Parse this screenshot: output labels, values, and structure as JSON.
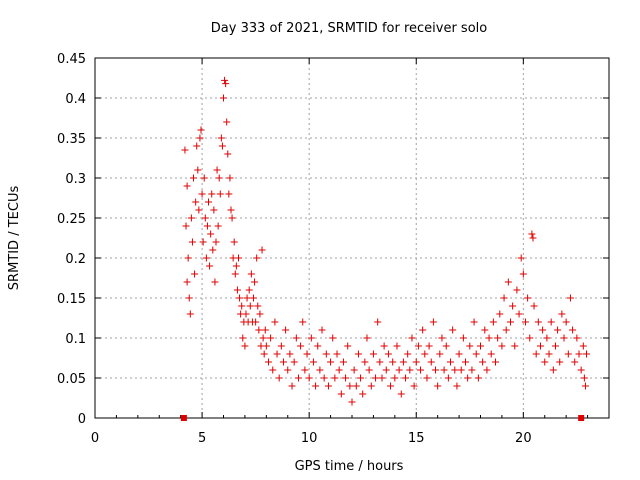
{
  "chart_data": {
    "type": "scatter",
    "title": "Day 333 of 2021, SRMTID for receiver solo",
    "xlabel": "GPS time / hours",
    "ylabel": "SRMTID / TECUs",
    "xlim": [
      0,
      24
    ],
    "ylim": [
      0,
      0.45
    ],
    "grid": true,
    "marker": "+",
    "x_ticks": [
      0,
      5,
      10,
      15,
      20
    ],
    "x_tick_labels": [
      "0",
      "5",
      "10",
      "15",
      "20"
    ],
    "y_ticks": [
      0,
      0.05,
      0.1,
      0.15,
      0.2,
      0.25,
      0.3,
      0.35,
      0.4,
      0.45
    ],
    "y_tick_labels": [
      "0",
      "0.05",
      "0.1",
      "0.15",
      "0.2",
      "0.25",
      "0.3",
      "0.35",
      "0.4",
      "0.45"
    ],
    "color": "#e00000",
    "axis_markers": [
      4.15,
      22.7
    ],
    "series": [
      {
        "name": "SRMTID",
        "points": [
          [
            4.2,
            0.335
          ],
          [
            4.3,
            0.29
          ],
          [
            4.25,
            0.24
          ],
          [
            4.35,
            0.2
          ],
          [
            4.3,
            0.17
          ],
          [
            4.4,
            0.15
          ],
          [
            4.45,
            0.13
          ],
          [
            4.5,
            0.25
          ],
          [
            4.55,
            0.22
          ],
          [
            4.6,
            0.3
          ],
          [
            4.65,
            0.18
          ],
          [
            4.7,
            0.27
          ],
          [
            4.75,
            0.34
          ],
          [
            4.8,
            0.31
          ],
          [
            4.85,
            0.26
          ],
          [
            4.9,
            0.35
          ],
          [
            4.95,
            0.36
          ],
          [
            5.0,
            0.28
          ],
          [
            5.05,
            0.22
          ],
          [
            5.1,
            0.3
          ],
          [
            5.15,
            0.25
          ],
          [
            5.2,
            0.2
          ],
          [
            5.25,
            0.24
          ],
          [
            5.3,
            0.27
          ],
          [
            5.35,
            0.19
          ],
          [
            5.4,
            0.23
          ],
          [
            5.45,
            0.28
          ],
          [
            5.5,
            0.21
          ],
          [
            5.55,
            0.26
          ],
          [
            5.6,
            0.17
          ],
          [
            5.65,
            0.22
          ],
          [
            5.7,
            0.31
          ],
          [
            5.75,
            0.24
          ],
          [
            5.8,
            0.3
          ],
          [
            5.85,
            0.28
          ],
          [
            5.9,
            0.35
          ],
          [
            5.95,
            0.34
          ],
          [
            6.0,
            0.4
          ],
          [
            6.05,
            0.422
          ],
          [
            6.1,
            0.418
          ],
          [
            6.15,
            0.37
          ],
          [
            6.2,
            0.33
          ],
          [
            6.25,
            0.28
          ],
          [
            6.3,
            0.3
          ],
          [
            6.35,
            0.26
          ],
          [
            6.4,
            0.25
          ],
          [
            6.45,
            0.2
          ],
          [
            6.5,
            0.22
          ],
          [
            6.55,
            0.18
          ],
          [
            6.6,
            0.19
          ],
          [
            6.65,
            0.16
          ],
          [
            6.7,
            0.2
          ],
          [
            6.75,
            0.15
          ],
          [
            6.8,
            0.13
          ],
          [
            6.85,
            0.14
          ],
          [
            6.9,
            0.1
          ],
          [
            6.95,
            0.12
          ],
          [
            7.0,
            0.09
          ],
          [
            7.05,
            0.13
          ],
          [
            7.1,
            0.15
          ],
          [
            7.15,
            0.12
          ],
          [
            7.2,
            0.16
          ],
          [
            7.25,
            0.14
          ],
          [
            7.3,
            0.18
          ],
          [
            7.35,
            0.12
          ],
          [
            7.4,
            0.15
          ],
          [
            7.45,
            0.17
          ],
          [
            7.5,
            0.12
          ],
          [
            7.55,
            0.2
          ],
          [
            7.6,
            0.14
          ],
          [
            7.65,
            0.11
          ],
          [
            7.7,
            0.13
          ],
          [
            7.75,
            0.09
          ],
          [
            7.8,
            0.21
          ],
          [
            7.85,
            0.1
          ],
          [
            7.9,
            0.08
          ],
          [
            7.95,
            0.11
          ],
          [
            8.0,
            0.09
          ],
          [
            8.1,
            0.07
          ],
          [
            8.2,
            0.1
          ],
          [
            8.3,
            0.06
          ],
          [
            8.4,
            0.12
          ],
          [
            8.5,
            0.08
          ],
          [
            8.6,
            0.05
          ],
          [
            8.7,
            0.09
          ],
          [
            8.8,
            0.07
          ],
          [
            8.9,
            0.11
          ],
          [
            9.0,
            0.06
          ],
          [
            9.1,
            0.08
          ],
          [
            9.2,
            0.04
          ],
          [
            9.3,
            0.07
          ],
          [
            9.4,
            0.1
          ],
          [
            9.5,
            0.05
          ],
          [
            9.6,
            0.09
          ],
          [
            9.7,
            0.12
          ],
          [
            9.8,
            0.06
          ],
          [
            9.9,
            0.08
          ],
          [
            10.0,
            0.05
          ],
          [
            10.1,
            0.1
          ],
          [
            10.2,
            0.07
          ],
          [
            10.3,
            0.04
          ],
          [
            10.4,
            0.09
          ],
          [
            10.5,
            0.06
          ],
          [
            10.6,
            0.11
          ],
          [
            10.7,
            0.05
          ],
          [
            10.8,
            0.08
          ],
          [
            10.9,
            0.04
          ],
          [
            11.0,
            0.07
          ],
          [
            11.1,
            0.1
          ],
          [
            11.2,
            0.05
          ],
          [
            11.3,
            0.08
          ],
          [
            11.4,
            0.06
          ],
          [
            11.5,
            0.03
          ],
          [
            11.6,
            0.07
          ],
          [
            11.7,
            0.05
          ],
          [
            11.8,
            0.09
          ],
          [
            11.9,
            0.04
          ],
          [
            12.0,
            0.02
          ],
          [
            12.1,
            0.06
          ],
          [
            12.2,
            0.04
          ],
          [
            12.3,
            0.08
          ],
          [
            12.4,
            0.05
          ],
          [
            12.5,
            0.03
          ],
          [
            12.6,
            0.07
          ],
          [
            12.7,
            0.1
          ],
          [
            12.8,
            0.06
          ],
          [
            12.9,
            0.04
          ],
          [
            13.0,
            0.08
          ],
          [
            13.1,
            0.05
          ],
          [
            13.2,
            0.12
          ],
          [
            13.3,
            0.07
          ],
          [
            13.4,
            0.05
          ],
          [
            13.5,
            0.09
          ],
          [
            13.6,
            0.06
          ],
          [
            13.7,
            0.08
          ],
          [
            13.8,
            0.04
          ],
          [
            13.9,
            0.07
          ],
          [
            14.0,
            0.05
          ],
          [
            14.1,
            0.09
          ],
          [
            14.2,
            0.06
          ],
          [
            14.3,
            0.03
          ],
          [
            14.4,
            0.07
          ],
          [
            14.5,
            0.05
          ],
          [
            14.6,
            0.08
          ],
          [
            14.7,
            0.06
          ],
          [
            14.8,
            0.1
          ],
          [
            14.9,
            0.04
          ],
          [
            15.0,
            0.07
          ],
          [
            15.1,
            0.09
          ],
          [
            15.2,
            0.06
          ],
          [
            15.3,
            0.11
          ],
          [
            15.4,
            0.08
          ],
          [
            15.5,
            0.05
          ],
          [
            15.6,
            0.09
          ],
          [
            15.7,
            0.07
          ],
          [
            15.8,
            0.12
          ],
          [
            15.9,
            0.06
          ],
          [
            16.0,
            0.04
          ],
          [
            16.1,
            0.08
          ],
          [
            16.2,
            0.1
          ],
          [
            16.3,
            0.06
          ],
          [
            16.4,
            0.09
          ],
          [
            16.5,
            0.05
          ],
          [
            16.6,
            0.07
          ],
          [
            16.7,
            0.11
          ],
          [
            16.8,
            0.06
          ],
          [
            16.9,
            0.04
          ],
          [
            17.0,
            0.08
          ],
          [
            17.1,
            0.06
          ],
          [
            17.2,
            0.1
          ],
          [
            17.3,
            0.07
          ],
          [
            17.4,
            0.05
          ],
          [
            17.5,
            0.09
          ],
          [
            17.6,
            0.06
          ],
          [
            17.7,
            0.12
          ],
          [
            17.8,
            0.08
          ],
          [
            17.9,
            0.05
          ],
          [
            18.0,
            0.09
          ],
          [
            18.1,
            0.07
          ],
          [
            18.2,
            0.11
          ],
          [
            18.3,
            0.06
          ],
          [
            18.4,
            0.1
          ],
          [
            18.5,
            0.08
          ],
          [
            18.6,
            0.12
          ],
          [
            18.7,
            0.07
          ],
          [
            18.8,
            0.1
          ],
          [
            18.9,
            0.13
          ],
          [
            19.0,
            0.09
          ],
          [
            19.1,
            0.15
          ],
          [
            19.2,
            0.11
          ],
          [
            19.3,
            0.17
          ],
          [
            19.4,
            0.12
          ],
          [
            19.5,
            0.14
          ],
          [
            19.6,
            0.09
          ],
          [
            19.7,
            0.16
          ],
          [
            19.8,
            0.13
          ],
          [
            19.9,
            0.2
          ],
          [
            20.0,
            0.18
          ],
          [
            20.1,
            0.12
          ],
          [
            20.2,
            0.15
          ],
          [
            20.3,
            0.1
          ],
          [
            20.4,
            0.23
          ],
          [
            20.45,
            0.225
          ],
          [
            20.5,
            0.14
          ],
          [
            20.6,
            0.08
          ],
          [
            20.7,
            0.12
          ],
          [
            20.8,
            0.09
          ],
          [
            20.9,
            0.11
          ],
          [
            21.0,
            0.07
          ],
          [
            21.1,
            0.1
          ],
          [
            21.2,
            0.08
          ],
          [
            21.3,
            0.12
          ],
          [
            21.4,
            0.06
          ],
          [
            21.5,
            0.09
          ],
          [
            21.6,
            0.11
          ],
          [
            21.7,
            0.07
          ],
          [
            21.8,
            0.13
          ],
          [
            21.9,
            0.1
          ],
          [
            22.0,
            0.12
          ],
          [
            22.1,
            0.08
          ],
          [
            22.2,
            0.15
          ],
          [
            22.3,
            0.11
          ],
          [
            22.4,
            0.07
          ],
          [
            22.5,
            0.1
          ],
          [
            22.6,
            0.08
          ],
          [
            22.7,
            0.06
          ],
          [
            22.8,
            0.09
          ],
          [
            22.85,
            0.05
          ],
          [
            22.9,
            0.04
          ],
          [
            22.95,
            0.08
          ]
        ]
      }
    ]
  }
}
